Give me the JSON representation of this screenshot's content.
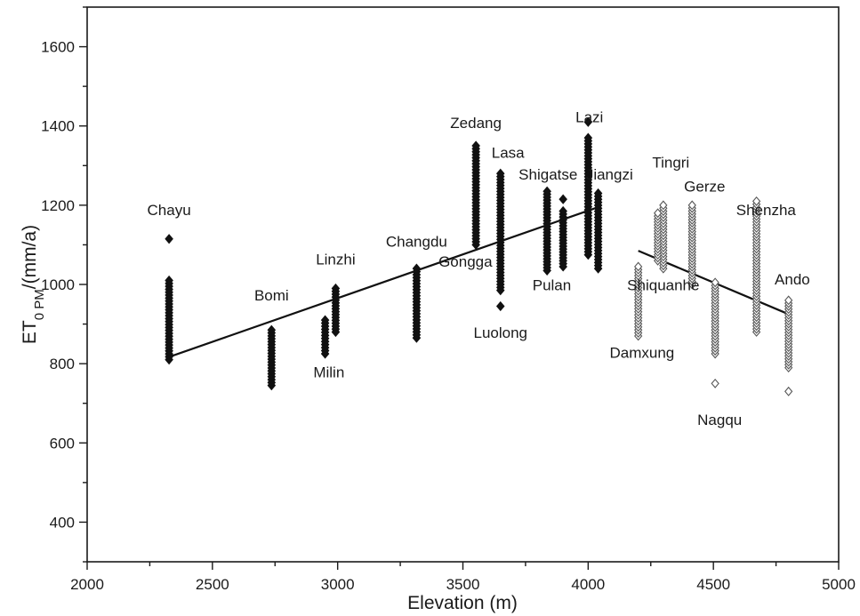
{
  "chart_data": {
    "type": "scatter",
    "title": "",
    "xlabel": "Elevation (m)",
    "ylabel": {
      "main": "ET",
      "sub": "0 PM",
      "unit": "/(mm/a)"
    },
    "xlim": [
      2000,
      5000
    ],
    "ylim": [
      300,
      1700
    ],
    "xticks": [
      2000,
      2500,
      3000,
      3500,
      4000,
      4500,
      5000
    ],
    "yticks": [
      400,
      600,
      800,
      1000,
      1200,
      1400,
      1600
    ],
    "x_minor_step": 250,
    "y_minor_step": 100,
    "grid": false,
    "legend": "none",
    "colors": {
      "axis": "#1a1a1a",
      "filled_marker": "#111111",
      "open_marker": "#555555",
      "trend": "#111111"
    },
    "series": [
      {
        "marker": "filled-diamond",
        "stations": [
          {
            "name": "Chayu",
            "x": 2327,
            "y_min": 810,
            "y_max": 1010,
            "outliers": [
              1115
            ]
          },
          {
            "name": "Bomi",
            "x": 2736,
            "y_min": 745,
            "y_max": 885,
            "outliers": []
          },
          {
            "name": "Milin",
            "x": 2950,
            "y_min": 825,
            "y_max": 910,
            "outliers": []
          },
          {
            "name": "Linzhi",
            "x": 2992,
            "y_min": 880,
            "y_max": 990,
            "outliers": []
          },
          {
            "name": "Changdu",
            "x": 3315,
            "y_min": 865,
            "y_max": 1040,
            "outliers": []
          },
          {
            "name": "Zedang",
            "x": 3552,
            "y_min": 1100,
            "y_max": 1350,
            "outliers": []
          },
          {
            "name": "Lasa",
            "x": 3650,
            "y_min": 985,
            "y_max": 1280,
            "outliers": [
              945
            ]
          },
          {
            "name": "Shigatse",
            "x": 3836,
            "y_min": 1035,
            "y_max": 1235,
            "outliers": []
          },
          {
            "name": "Pulan",
            "x": 3900,
            "y_min": 1045,
            "y_max": 1185,
            "outliers": [
              1215
            ]
          },
          {
            "name": "Lazi",
            "x": 4000,
            "y_min": 1075,
            "y_max": 1370,
            "outliers": [
              1410
            ]
          },
          {
            "name": "Jiangzi",
            "x": 4040,
            "y_min": 1040,
            "y_max": 1230,
            "outliers": []
          }
        ]
      },
      {
        "marker": "open-diamond",
        "stations": [
          {
            "name": "Damxung",
            "x": 4200,
            "y_min": 870,
            "y_max": 1045,
            "outliers": []
          },
          {
            "name": "Tingri",
            "x": 4300,
            "y_min": 1040,
            "y_max": 1200,
            "outliers": []
          },
          {
            "name": "Shiquanhe",
            "x": 4278,
            "y_min": 1060,
            "y_max": 1180,
            "outliers": []
          },
          {
            "name": "Gerze",
            "x": 4415,
            "y_min": 1000,
            "y_max": 1200,
            "outliers": []
          },
          {
            "name": "Nagqu",
            "x": 4507,
            "y_min": 825,
            "y_max": 1005,
            "outliers": [
              750
            ]
          },
          {
            "name": "Shenzha",
            "x": 4672,
            "y_min": 880,
            "y_max": 1210,
            "outliers": []
          },
          {
            "name": "Ando",
            "x": 4800,
            "y_min": 790,
            "y_max": 960,
            "outliers": [
              730
            ]
          }
        ]
      }
    ],
    "trend_lines": [
      {
        "x": [
          2327,
          4040
        ],
        "y": [
          817,
          1195
        ]
      },
      {
        "x": [
          4200,
          4800
        ],
        "y": [
          1085,
          925
        ]
      }
    ],
    "labels": [
      {
        "text": "Chayu",
        "x": 2327,
        "y": 1175
      },
      {
        "text": "Bomi",
        "x": 2736,
        "y": 960
      },
      {
        "text": "Milin",
        "x": 2965,
        "y": 765
      },
      {
        "text": "Linzhi",
        "x": 2992,
        "y": 1050
      },
      {
        "text": "Changdu",
        "x": 3315,
        "y": 1095
      },
      {
        "text": "Zedang",
        "x": 3552,
        "y": 1395
      },
      {
        "text": "Lasa",
        "x": 3680,
        "y": 1320
      },
      {
        "text": "Gongga",
        "x": 3510,
        "y": 1045
      },
      {
        "text": "Luolong",
        "x": 3650,
        "y": 865
      },
      {
        "text": "Shigatse",
        "x": 3840,
        "y": 1265
      },
      {
        "text": "Pulan",
        "x": 3855,
        "y": 985
      },
      {
        "text": "Lazi",
        "x": 4005,
        "y": 1410
      },
      {
        "text": "Jiangzi",
        "x": 4085,
        "y": 1265
      },
      {
        "text": "Tingri",
        "x": 4330,
        "y": 1295
      },
      {
        "text": "Gerze",
        "x": 4465,
        "y": 1235
      },
      {
        "text": "Shiquanhe",
        "x": 4300,
        "y": 985
      },
      {
        "text": "Damxung",
        "x": 4215,
        "y": 815
      },
      {
        "text": "Shenzha",
        "x": 4710,
        "y": 1175
      },
      {
        "text": "Ando",
        "x": 4815,
        "y": 1000
      },
      {
        "text": "Nagqu",
        "x": 4525,
        "y": 645
      }
    ]
  }
}
